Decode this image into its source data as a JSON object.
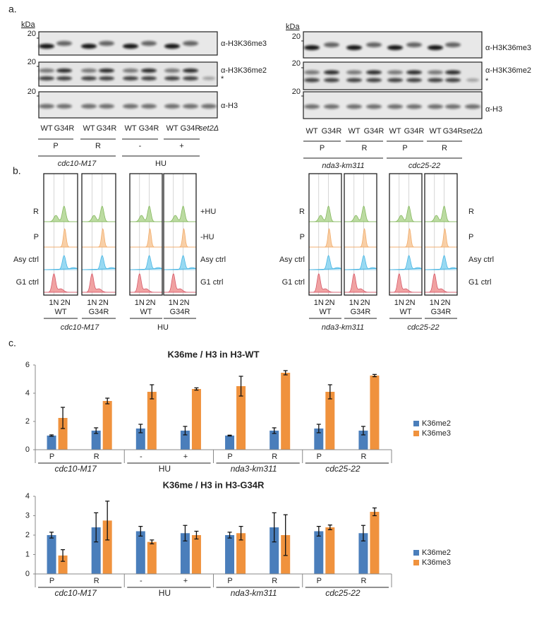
{
  "panel_a": {
    "label": "a.",
    "blots": [
      {
        "kda": "kDa",
        "markers": [
          20,
          20,
          20
        ],
        "antibodies": [
          "α-H3K36me3",
          "α-H3K36me2",
          "α-H3"
        ],
        "asterisk": "*",
        "lanes": [
          "WT",
          "G34R",
          "WT",
          "G34R",
          "WT",
          "G34R",
          "WT",
          "G34R",
          "set2Δ"
        ],
        "conditions": [
          "P",
          "R",
          "-",
          "+"
        ],
        "strains": [
          "cdc10-M17",
          "HU"
        ]
      },
      {
        "kda": "kDa",
        "markers": [
          20,
          20,
          20
        ],
        "antibodies": [
          "α-H3K36me3",
          "α-H3K36me2",
          "α-H3"
        ],
        "asterisk": "*",
        "lanes": [
          "WT",
          "G34R",
          "WT",
          "G34R",
          "WT",
          "G34R",
          "WT",
          "G34R",
          "set2Δ"
        ],
        "conditions": [
          "P",
          "R",
          "P",
          "R"
        ],
        "strains": [
          "nda3-km311",
          "cdc25-22"
        ]
      }
    ]
  },
  "panel_b": {
    "label": "b.",
    "panels": [
      {
        "row_labels": [
          "R",
          "P",
          "Asy ctrl",
          "G1 ctrl"
        ],
        "boxes": [
          {
            "ploidy": [
              "1N",
              "2N"
            ],
            "genotype": "WT"
          },
          {
            "ploidy": [
              "1N",
              "2N"
            ],
            "genotype": "G34R"
          }
        ],
        "strain": "cdc10-M17"
      },
      {
        "row_labels": [
          "+HU",
          "-HU",
          "Asy ctrl",
          "G1 ctrl"
        ],
        "boxes": [
          {
            "ploidy": [
              "1N",
              "2N"
            ],
            "genotype": "WT"
          },
          {
            "ploidy": [
              "1N",
              "2N"
            ],
            "genotype": "G34R"
          }
        ],
        "strain": "HU"
      },
      {
        "row_labels": [
          "R",
          "P",
          "Asy ctrl",
          "G1 ctrl"
        ],
        "boxes": [
          {
            "ploidy": [
              "1N",
              "2N"
            ],
            "genotype": "WT"
          },
          {
            "ploidy": [
              "1N",
              "2N"
            ],
            "genotype": "G34R"
          }
        ],
        "strain": "nda3-km311"
      },
      {
        "row_labels": [
          "R",
          "P",
          "Asy ctrl",
          "G1 ctrl"
        ],
        "boxes": [
          {
            "ploidy": [
              "1N",
              "2N"
            ],
            "genotype": "WT"
          },
          {
            "ploidy": [
              "1N",
              "2N"
            ],
            "genotype": "G34R"
          }
        ],
        "strain": "cdc25-22"
      }
    ]
  },
  "panel_c": {
    "label": "c."
  },
  "chart_data": [
    {
      "type": "bar",
      "title": "K36me / H3 in H3-WT",
      "categories": [
        "P",
        "R",
        "-",
        "+",
        "P",
        "R",
        "P",
        "R"
      ],
      "group_labels": [
        "cdc10-M17",
        "HU",
        "nda3-km311",
        "cdc25-22"
      ],
      "ylim": [
        0,
        6
      ],
      "yticks": [
        0,
        2,
        4,
        6
      ],
      "series": [
        {
          "name": "K36me2",
          "color": "#4a7ebb",
          "values": [
            1.0,
            1.35,
            1.5,
            1.35,
            1.0,
            1.35,
            1.5,
            1.35
          ],
          "errors": [
            0.05,
            0.2,
            0.3,
            0.3,
            0.03,
            0.2,
            0.3,
            0.3
          ]
        },
        {
          "name": "K36me3",
          "color": "#f0923d",
          "values": [
            2.25,
            3.45,
            4.1,
            4.3,
            4.5,
            5.45,
            4.1,
            5.25
          ],
          "errors": [
            0.75,
            0.2,
            0.5,
            0.08,
            0.7,
            0.15,
            0.5,
            0.08
          ]
        }
      ]
    },
    {
      "type": "bar",
      "title": "K36me / H3 in H3-G34R",
      "categories": [
        "P",
        "R",
        "-",
        "+",
        "P",
        "R",
        "P",
        "R"
      ],
      "group_labels": [
        "cdc10-M17",
        "HU",
        "nda3-km311",
        "cdc25-22"
      ],
      "ylim": [
        0,
        4
      ],
      "yticks": [
        0,
        1,
        2,
        3,
        4
      ],
      "series": [
        {
          "name": "K36me2",
          "color": "#4a7ebb",
          "values": [
            2.0,
            2.4,
            2.2,
            2.1,
            2.0,
            2.4,
            2.2,
            2.1
          ],
          "errors": [
            0.15,
            0.75,
            0.25,
            0.4,
            0.15,
            0.75,
            0.25,
            0.4
          ]
        },
        {
          "name": "K36me3",
          "color": "#f0923d",
          "values": [
            0.95,
            2.75,
            1.65,
            2.0,
            2.1,
            2.0,
            2.4,
            3.2
          ],
          "errors": [
            0.3,
            1.0,
            0.1,
            0.2,
            0.35,
            1.05,
            0.12,
            0.2
          ]
        }
      ]
    }
  ]
}
